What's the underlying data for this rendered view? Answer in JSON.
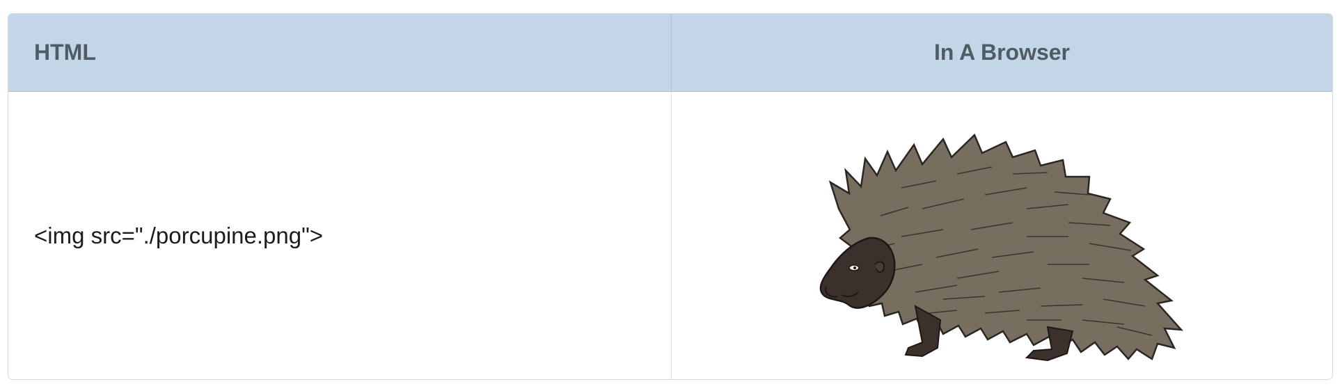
{
  "table": {
    "headers": [
      "HTML",
      "In A Browser"
    ],
    "rows": [
      {
        "code": "<img src=\"./porcupine.png\">",
        "image_subject": "porcupine-illustration"
      }
    ]
  },
  "colors": {
    "header_background": "#c3d6e8",
    "header_text": "#4f5b65",
    "body_text": "#1c1c1c",
    "quill_fill": "#776e5f",
    "face_fill": "#3c302b"
  }
}
